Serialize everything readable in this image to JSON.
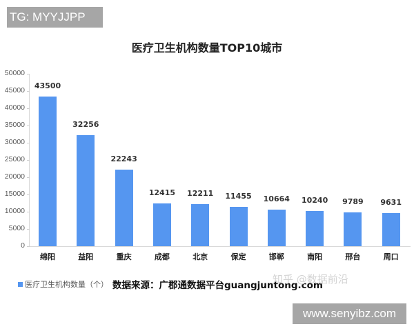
{
  "watermarks": {
    "top_left": "TG: MYYJJPP",
    "zhihu": "知乎 @数据前沿",
    "bottom_right": "www.senyibz.com"
  },
  "title": "医疗卫生机构数量TOP10城市",
  "legend": {
    "label": "医疗卫生机构数量（个）",
    "color": "#5596f0"
  },
  "source": "数据来源：广郡通数据平台guangjuntong.com",
  "y_ticks": [
    "0",
    "5000",
    "10000",
    "15000",
    "20000",
    "25000",
    "30000",
    "35000",
    "40000",
    "45000",
    "50000"
  ],
  "chart_data": {
    "type": "bar",
    "title": "医疗卫生机构数量TOP10城市",
    "xlabel": "",
    "ylabel": "",
    "ylim": [
      0,
      50000
    ],
    "y_tick_step": 5000,
    "grid": false,
    "legend_position": "bottom-left",
    "categories": [
      "绵阳",
      "益阳",
      "重庆",
      "成都",
      "北京",
      "保定",
      "邯郸",
      "南阳",
      "邢台",
      "周口"
    ],
    "series": [
      {
        "name": "医疗卫生机构数量（个）",
        "color": "#5596f0",
        "values": [
          43500,
          32256,
          22243,
          12415,
          12211,
          11455,
          10664,
          10240,
          9789,
          9631
        ]
      }
    ],
    "annotations": [
      "数据来源：广郡通数据平台guangjuntong.com"
    ]
  }
}
